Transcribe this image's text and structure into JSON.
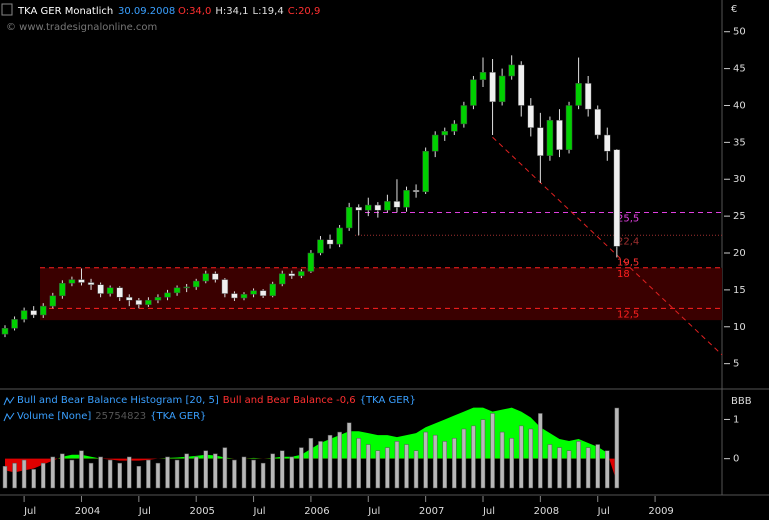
{
  "chart_data": [
    {
      "type": "candlestick",
      "title": "TKA GER Monatlich",
      "subtitle": "30.09.2008",
      "ohlc_labels": [
        {
          "text": "O:34,0",
          "color": "#ff3030"
        },
        {
          "text": "H:34,1",
          "color": "#e0e0e0"
        },
        {
          "text": "L:19,4",
          "color": "#e0e0e0"
        },
        {
          "text": "C:20,9",
          "color": "#ff3030"
        }
      ],
      "annotation": "© www.tradesignalonline.com",
      "y_unit": "€",
      "ylim": [
        1.7,
        54.3
      ],
      "yticks": [
        5,
        10,
        15,
        20,
        25,
        30,
        35,
        40,
        45,
        50
      ],
      "colors": {
        "up": "#00d000",
        "down": "#f0f0f0",
        "wick": "#e0e0e0"
      },
      "open": [
        9.0,
        9.8,
        11.0,
        12.2,
        11.6,
        12.8,
        14.2,
        15.9,
        16.4,
        16.0,
        15.7,
        14.5,
        15.3,
        14.0,
        13.6,
        13.0,
        13.6,
        14.0,
        14.6,
        15.3,
        15.4,
        16.2,
        17.2,
        16.4,
        14.5,
        13.9,
        14.4,
        14.9,
        14.2,
        15.8,
        17.2,
        16.9,
        17.5,
        20.0,
        21.8,
        21.2,
        23.4,
        26.2,
        25.8,
        26.5,
        25.8,
        27.0,
        26.2,
        28.5,
        28.3,
        33.8,
        36.0,
        36.5,
        37.5,
        40.0,
        43.5,
        44.5,
        40.5,
        44.0,
        45.5,
        40.0,
        37.0,
        33.2,
        38.0,
        34.0,
        40.0,
        43.0,
        39.5,
        36.0,
        34.0,
        null,
        null,
        null,
        null,
        null,
        null,
        null,
        null,
        null,
        null,
        null
      ],
      "high": [
        10.2,
        11.4,
        12.6,
        12.8,
        13.2,
        14.6,
        16.3,
        16.8,
        17.9,
        16.5,
        16.0,
        15.6,
        15.5,
        14.4,
        13.9,
        14.0,
        14.4,
        15.0,
        15.6,
        15.8,
        16.5,
        17.6,
        17.5,
        16.6,
        14.8,
        14.7,
        15.2,
        15.1,
        16.1,
        17.6,
        17.6,
        17.8,
        20.4,
        22.3,
        22.5,
        23.8,
        26.8,
        26.6,
        27.5,
        26.9,
        27.9,
        30.0,
        29.0,
        29.3,
        34.3,
        36.5,
        37.0,
        38.0,
        40.5,
        44.0,
        46.5,
        46.3,
        45.0,
        46.8,
        46.0,
        41.0,
        39.0,
        38.5,
        39.5,
        40.5,
        46.5,
        44.0,
        40.0,
        37.0,
        34.1,
        null,
        null,
        null,
        null,
        null,
        null,
        null,
        null,
        null,
        null,
        null
      ],
      "low": [
        8.6,
        9.5,
        10.6,
        11.2,
        11.2,
        12.5,
        13.8,
        15.5,
        15.6,
        15.0,
        14.0,
        14.1,
        13.5,
        12.8,
        12.5,
        12.7,
        13.2,
        13.6,
        14.2,
        14.7,
        15.0,
        15.9,
        16.0,
        14.0,
        13.5,
        13.6,
        14.0,
        13.9,
        14.0,
        15.5,
        16.5,
        16.6,
        17.3,
        19.7,
        20.6,
        20.8,
        23.0,
        22.4,
        25.0,
        24.8,
        25.5,
        25.5,
        25.6,
        27.5,
        28.0,
        33.0,
        35.2,
        36.0,
        37.0,
        39.5,
        42.5,
        36.0,
        40.0,
        43.5,
        38.5,
        35.8,
        29.5,
        32.5,
        33.0,
        33.5,
        39.5,
        38.5,
        35.5,
        32.5,
        19.4,
        null,
        null,
        null,
        null,
        null,
        null,
        null,
        null,
        null,
        null,
        null
      ],
      "close": [
        9.8,
        11.0,
        12.2,
        11.6,
        12.8,
        14.2,
        15.9,
        16.4,
        16.0,
        15.7,
        14.5,
        15.3,
        14.0,
        13.6,
        13.0,
        13.6,
        14.0,
        14.6,
        15.3,
        15.4,
        16.2,
        17.2,
        16.4,
        14.5,
        13.9,
        14.4,
        14.9,
        14.2,
        15.8,
        17.2,
        16.9,
        17.5,
        20.0,
        21.8,
        21.2,
        23.4,
        26.2,
        25.8,
        26.5,
        25.8,
        27.0,
        26.2,
        28.5,
        28.3,
        33.8,
        36.0,
        36.5,
        37.5,
        40.0,
        43.5,
        44.5,
        40.5,
        44.0,
        45.5,
        40.0,
        37.0,
        33.2,
        38.0,
        34.0,
        40.0,
        43.0,
        39.5,
        36.0,
        33.8,
        20.9,
        null,
        null,
        null,
        null,
        null,
        null,
        null,
        null,
        null,
        null,
        null
      ],
      "zone": {
        "low": 10.9,
        "high": 18,
        "color": "#3a0000"
      },
      "levels": [
        {
          "value": 25.5,
          "label": "25,5",
          "color": "#e040e0",
          "style": "dashed"
        },
        {
          "value": 22.4,
          "label": "22,4",
          "color": "#a03030",
          "style": "dotted"
        },
        {
          "value": 19.5,
          "label": "19,5",
          "color": "#ff3030",
          "style": "none"
        },
        {
          "value": 18,
          "label": "18",
          "color": "#ff2020",
          "style": "dashed"
        },
        {
          "value": 12.5,
          "label": "12,5",
          "color": "#ff2020",
          "style": "dashed"
        }
      ],
      "trend_line": {
        "x": [
          51,
          75
        ],
        "values": [
          35.7,
          6.2
        ],
        "color": "#e02020"
      }
    },
    {
      "type": "indicator",
      "categories": [
        null,
        null,
        "Jul",
        null,
        null,
        null,
        null,
        null,
        "2004",
        null,
        null,
        null,
        null,
        null,
        "Jul",
        null,
        null,
        null,
        null,
        null,
        "2005",
        null,
        null,
        null,
        null,
        null,
        "Jul",
        null,
        null,
        null,
        null,
        null,
        "2006",
        null,
        null,
        null,
        null,
        null,
        "Jul",
        null,
        null,
        null,
        null,
        null,
        "2007",
        null,
        null,
        null,
        null,
        null,
        "Jul",
        null,
        null,
        null,
        null,
        null,
        "2008",
        null,
        null,
        null,
        null,
        null,
        "Jul",
        null,
        null,
        null,
        null,
        null,
        "2009",
        null,
        null,
        null,
        null,
        null,
        null,
        null
      ],
      "y_label": "BBB",
      "ylim": [
        -0.85,
        1.7
      ],
      "yticks": [
        0,
        1
      ],
      "series": [
        {
          "name": "Bull and Bear Balance Histogram [20, 5]",
          "label": "Bull and Bear Balance -0,6",
          "source": "{TKA GER}",
          "colors": {
            "up": "#00ff00",
            "down": "#e00000"
          },
          "values": [
            -0.3,
            -0.35,
            -0.3,
            -0.25,
            -0.15,
            -0.05,
            0.05,
            0.1,
            0.1,
            0.05,
            0.0,
            -0.02,
            -0.05,
            -0.05,
            -0.05,
            -0.03,
            0.0,
            0.02,
            0.03,
            0.05,
            0.07,
            0.1,
            0.08,
            0.03,
            0.0,
            0.0,
            0.02,
            0.0,
            0.02,
            0.05,
            0.05,
            0.1,
            0.25,
            0.4,
            0.5,
            0.6,
            0.7,
            0.7,
            0.65,
            0.6,
            0.6,
            0.55,
            0.6,
            0.65,
            0.8,
            0.9,
            1.0,
            1.1,
            1.2,
            1.3,
            1.3,
            1.2,
            1.25,
            1.3,
            1.2,
            1.05,
            0.8,
            0.65,
            0.5,
            0.45,
            0.5,
            0.4,
            0.3,
            0.15,
            -0.6,
            null,
            null,
            null,
            null,
            null,
            null,
            null,
            null,
            null,
            null,
            null
          ]
        },
        {
          "name": "Volume [None]",
          "source": "{TKA GER}",
          "color": "#b8b8b8",
          "values": [
            7000000,
            8000000,
            9000000,
            6000000,
            8000000,
            10000000,
            11000000,
            9000000,
            12000000,
            8000000,
            10000000,
            9000000,
            8000000,
            10000000,
            7000000,
            9000000,
            8000000,
            10000000,
            9000000,
            11000000,
            10000000,
            12000000,
            11000000,
            13000000,
            9000000,
            10000000,
            9000000,
            8000000,
            11000000,
            12000000,
            10000000,
            13000000,
            16000000,
            15000000,
            17000000,
            18000000,
            21000000,
            16000000,
            14000000,
            12000000,
            13000000,
            15000000,
            14000000,
            12000000,
            18000000,
            17000000,
            15000000,
            16000000,
            19000000,
            20000000,
            22000000,
            24000000,
            18000000,
            16000000,
            20000000,
            19000000,
            24000000,
            14000000,
            13000000,
            12000000,
            15000000,
            13000000,
            14000000,
            12000000,
            25754823,
            null,
            null,
            null,
            null,
            null,
            null,
            null,
            null,
            null,
            null,
            null
          ]
        }
      ]
    }
  ]
}
